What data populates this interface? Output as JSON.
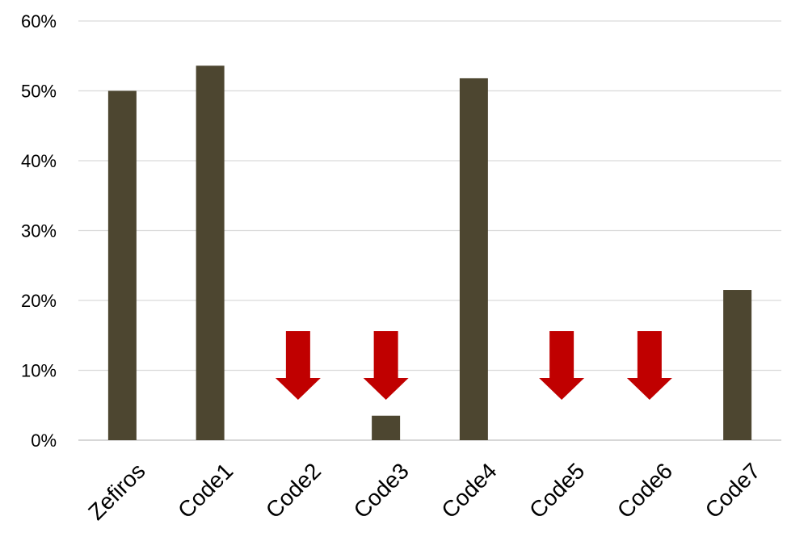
{
  "chart_data": {
    "type": "bar",
    "title": "",
    "xlabel": "",
    "ylabel": "",
    "categories": [
      "Zefiros",
      "Code1",
      "Code2",
      "Code3",
      "Code4",
      "Code5",
      "Code6",
      "Code7"
    ],
    "values": [
      0.5,
      0.536,
      0.0,
      0.035,
      0.518,
      0.0,
      0.0,
      0.215
    ],
    "ylim": [
      0,
      0.6
    ],
    "yticks": [
      0,
      0.1,
      0.2,
      0.3,
      0.4,
      0.5,
      0.6
    ],
    "ytick_labels": [
      "0%",
      "10%",
      "20%",
      "30%",
      "40%",
      "50%",
      "60%"
    ],
    "grid": true,
    "legend": "none",
    "bar_color": "#4d4630",
    "annotations": {
      "type": "down-arrow",
      "color": "#c00000",
      "categories": [
        "Code2",
        "Code3",
        "Code5",
        "Code6"
      ]
    }
  }
}
